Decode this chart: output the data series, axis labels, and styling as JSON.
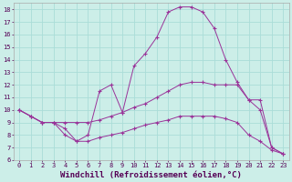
{
  "background_color": "#cceee8",
  "grid_color": "#aaddd8",
  "line_color": "#993399",
  "xlim": [
    -0.5,
    23.5
  ],
  "ylim": [
    6,
    18.5
  ],
  "xticks": [
    0,
    1,
    2,
    3,
    4,
    5,
    6,
    7,
    8,
    9,
    10,
    11,
    12,
    13,
    14,
    15,
    16,
    17,
    18,
    19,
    20,
    21,
    22,
    23
  ],
  "yticks": [
    6,
    7,
    8,
    9,
    10,
    11,
    12,
    13,
    14,
    15,
    16,
    17,
    18
  ],
  "xlabel": "Windchill (Refroidissement éolien,°C)",
  "tick_fontsize": 5.0,
  "xlabel_fontsize": 6.5,
  "curve_upper_x": [
    0,
    1,
    2,
    3,
    4,
    5,
    6,
    7,
    8,
    9,
    10,
    11,
    12,
    13,
    14,
    15,
    16,
    17,
    18,
    19,
    20,
    21,
    22,
    23
  ],
  "curve_upper_y": [
    10.0,
    9.5,
    9.0,
    9.0,
    8.5,
    7.5,
    8.0,
    11.5,
    12.0,
    9.8,
    13.5,
    14.5,
    15.8,
    17.8,
    18.2,
    18.2,
    17.8,
    16.5,
    14.0,
    12.2,
    10.8,
    10.8,
    7.0,
    6.5
  ],
  "curve_mid_x": [
    0,
    1,
    2,
    3,
    4,
    5,
    6,
    7,
    8,
    9,
    10,
    11,
    12,
    13,
    14,
    15,
    16,
    17,
    18,
    19,
    20,
    21,
    22,
    23
  ],
  "curve_mid_y": [
    10.0,
    9.5,
    9.0,
    9.0,
    9.0,
    9.0,
    9.0,
    9.2,
    9.5,
    9.8,
    10.2,
    10.5,
    11.0,
    11.5,
    12.0,
    12.2,
    12.2,
    12.0,
    12.0,
    12.0,
    10.8,
    10.0,
    7.0,
    6.5
  ],
  "curve_lower_x": [
    0,
    1,
    2,
    3,
    4,
    5,
    6,
    7,
    8,
    9,
    10,
    11,
    12,
    13,
    14,
    15,
    16,
    17,
    18,
    19,
    20,
    21,
    22,
    23
  ],
  "curve_lower_y": [
    10.0,
    9.5,
    9.0,
    9.0,
    8.0,
    7.5,
    7.5,
    7.8,
    8.0,
    8.2,
    8.5,
    8.8,
    9.0,
    9.2,
    9.5,
    9.5,
    9.5,
    9.5,
    9.3,
    9.0,
    8.0,
    7.5,
    6.8,
    6.5
  ]
}
